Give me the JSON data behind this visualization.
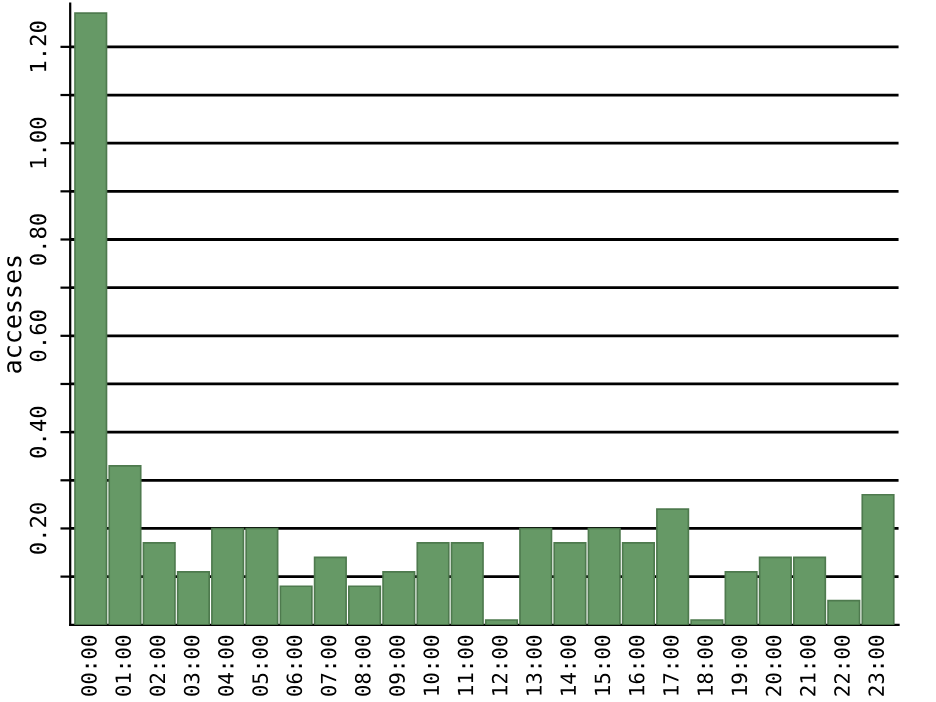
{
  "chart_data": {
    "type": "bar",
    "ylabel": "accesses",
    "categories": [
      "00:00",
      "01:00",
      "02:00",
      "03:00",
      "04:00",
      "05:00",
      "06:00",
      "07:00",
      "08:00",
      "09:00",
      "10:00",
      "11:00",
      "12:00",
      "13:00",
      "14:00",
      "15:00",
      "16:00",
      "17:00",
      "18:00",
      "19:00",
      "20:00",
      "21:00",
      "22:00",
      "23:00"
    ],
    "values": [
      1.27,
      0.33,
      0.17,
      0.11,
      0.2,
      0.2,
      0.08,
      0.14,
      0.08,
      0.11,
      0.17,
      0.17,
      0.01,
      0.2,
      0.17,
      0.2,
      0.17,
      0.24,
      0.01,
      0.11,
      0.14,
      0.14,
      0.05,
      0.27
    ],
    "color": "#669966",
    "ylim": [
      0,
      1.29
    ],
    "yticks": [
      {
        "value": 0.1,
        "label": null
      },
      {
        "value": 0.2,
        "label": "0.20"
      },
      {
        "value": 0.3,
        "label": null
      },
      {
        "value": 0.4,
        "label": "0.40"
      },
      {
        "value": 0.5,
        "label": null
      },
      {
        "value": 0.6,
        "label": "0.60"
      },
      {
        "value": 0.7,
        "label": null
      },
      {
        "value": 0.8,
        "label": "0.80"
      },
      {
        "value": 0.9,
        "label": null
      },
      {
        "value": 1.0,
        "label": "1.00"
      },
      {
        "value": 1.1,
        "label": null
      },
      {
        "value": 1.2,
        "label": "1.20"
      }
    ],
    "grid": "y"
  }
}
